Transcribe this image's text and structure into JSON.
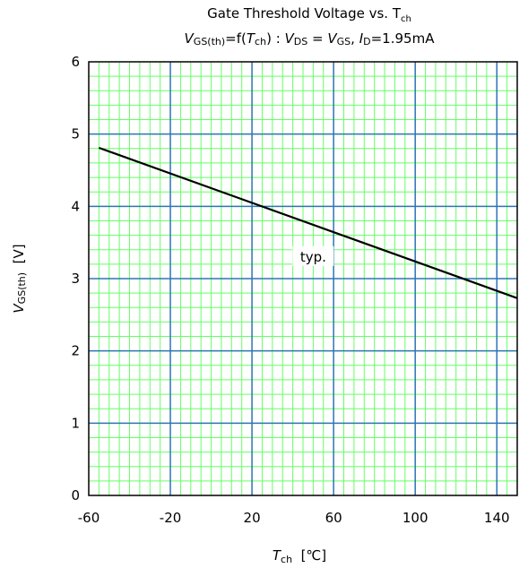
{
  "chart_data": {
    "type": "line",
    "title": "Gate Threshold Voltage vs. Tch",
    "subtitle": "VGS(th)=f(Tch) : VDS = VGS, ID=1.95mA",
    "xlabel": "Tch [℃]",
    "ylabel": "VGS(th) [V]",
    "xlim": [
      -60,
      150
    ],
    "ylim": [
      0,
      6
    ],
    "xticks": [
      -60,
      -20,
      20,
      60,
      100,
      140
    ],
    "yticks": [
      0,
      1,
      2,
      3,
      4,
      5,
      6
    ],
    "grid": true,
    "series": [
      {
        "name": "typ.",
        "x": [
          -55,
          150
        ],
        "y": [
          4.81,
          2.73
        ]
      }
    ],
    "annotations": [
      {
        "text": "typ.",
        "x": 50,
        "y": 3.3
      }
    ],
    "colors": {
      "major_grid": "#2e75b6",
      "minor_grid": "#66ff66",
      "line": "#000000",
      "frame": "#000000"
    }
  }
}
